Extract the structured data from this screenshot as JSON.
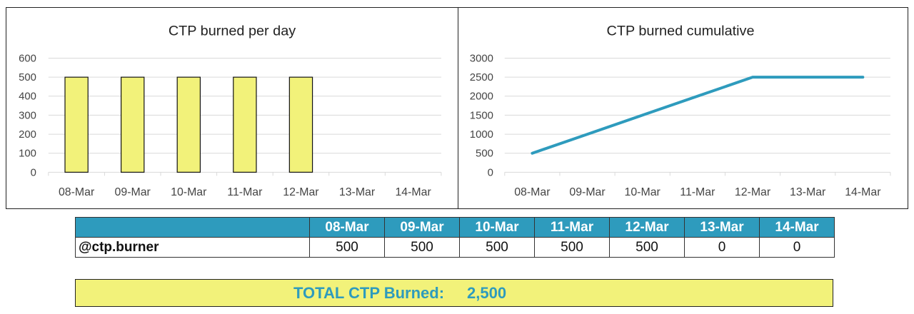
{
  "chart_data": [
    {
      "type": "bar",
      "title": "CTP burned per day",
      "categories": [
        "08-Mar",
        "09-Mar",
        "10-Mar",
        "11-Mar",
        "12-Mar",
        "13-Mar",
        "14-Mar"
      ],
      "values": [
        500,
        500,
        500,
        500,
        500,
        0,
        0
      ],
      "xlabel": "",
      "ylabel": "",
      "ylim": [
        0,
        600
      ],
      "yticks": [
        0,
        100,
        200,
        300,
        400,
        500,
        600
      ],
      "grid": true,
      "bar_color": "#f2f27a"
    },
    {
      "type": "line",
      "title": "CTP burned cumulative",
      "categories": [
        "08-Mar",
        "09-Mar",
        "10-Mar",
        "11-Mar",
        "12-Mar",
        "13-Mar",
        "14-Mar"
      ],
      "values": [
        500,
        1000,
        1500,
        2000,
        2500,
        2500,
        2500
      ],
      "xlabel": "",
      "ylabel": "",
      "ylim": [
        0,
        3000
      ],
      "yticks": [
        0,
        500,
        1000,
        1500,
        2000,
        2500,
        3000
      ],
      "grid": true,
      "line_color": "#2e9bbd"
    }
  ],
  "table": {
    "headers": [
      "",
      "08-Mar",
      "09-Mar",
      "10-Mar",
      "11-Mar",
      "12-Mar",
      "13-Mar",
      "14-Mar"
    ],
    "rows": [
      {
        "label": "@ctp.burner",
        "values": [
          "500",
          "500",
          "500",
          "500",
          "500",
          "0",
          "0"
        ]
      }
    ]
  },
  "total": {
    "label": "TOTAL CTP Burned:",
    "value": "2,500"
  },
  "colors": {
    "header_bg": "#2e9bbd",
    "highlight_bg": "#f2f27a",
    "accent_text": "#2e9bbd"
  }
}
